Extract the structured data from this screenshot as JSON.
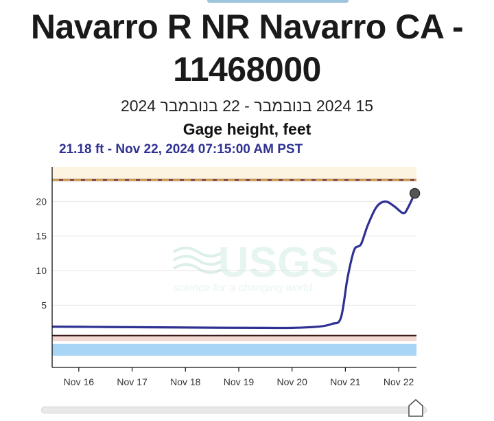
{
  "header": {
    "title": "Navarro R NR Navarro CA - 11468000",
    "date_range": "15 2024 בנובמבר - 22 בנובמבר 2024",
    "parameter": "Gage height, feet",
    "latest_reading": "21.18 ft - Nov 22, 2024 07:15:00 AM PST"
  },
  "watermark": {
    "logo_text": "USGS",
    "tagline": "science for a changing world"
  },
  "colors": {
    "series": "#2e3192",
    "flood_band": "#fdf3e1",
    "flood_line": "#7b3a36",
    "flood_dash": "#f2c94c",
    "low_band": "#f2d8d2",
    "low_line": "#3b1a1a",
    "no_flow_band": "#a8d4f5",
    "grid": "#e6e6e6"
  },
  "slider": {
    "value": 1.0
  },
  "chart_data": {
    "type": "line",
    "xlabel": "",
    "ylabel": "",
    "x_domain": [
      "2024-11-15T12:00",
      "2024-11-22T08:00"
    ],
    "y_domain": [
      -4,
      25
    ],
    "y_ticks": [
      5,
      10,
      15,
      20
    ],
    "x_ticks": [
      {
        "t": "2024-11-16T00:00",
        "label": "Nov 16"
      },
      {
        "t": "2024-11-17T00:00",
        "label": "Nov 17"
      },
      {
        "t": "2024-11-18T00:00",
        "label": "Nov 18"
      },
      {
        "t": "2024-11-19T00:00",
        "label": "Nov 19"
      },
      {
        "t": "2024-11-20T00:00",
        "label": "Nov 20"
      },
      {
        "t": "2024-11-21T00:00",
        "label": "Nov 21"
      },
      {
        "t": "2024-11-22T00:00",
        "label": "Nov 22"
      }
    ],
    "grid": true,
    "reference_bands": [
      {
        "kind": "flood",
        "from": 23.1,
        "to": 25,
        "line": 23.1
      },
      {
        "kind": "low",
        "from": -0.2,
        "to": 0.6,
        "line": 0.6
      },
      {
        "kind": "no-flow",
        "from": -2.3,
        "to": -0.6
      }
    ],
    "series": [
      {
        "name": "",
        "points": [
          [
            "2024-11-15T12:00",
            1.9
          ],
          [
            "2024-11-16T12:00",
            1.85
          ],
          [
            "2024-11-17T12:00",
            1.8
          ],
          [
            "2024-11-18T12:00",
            1.75
          ],
          [
            "2024-11-19T12:00",
            1.72
          ],
          [
            "2024-11-20T00:00",
            1.72
          ],
          [
            "2024-11-20T12:00",
            1.9
          ],
          [
            "2024-11-20T18:00",
            2.3
          ],
          [
            "2024-11-20T22:00",
            3.2
          ],
          [
            "2024-11-21T01:00",
            9.0
          ],
          [
            "2024-11-21T04:00",
            13.0
          ],
          [
            "2024-11-21T07:00",
            13.8
          ],
          [
            "2024-11-21T10:00",
            16.5
          ],
          [
            "2024-11-21T14:00",
            19.2
          ],
          [
            "2024-11-21T18:00",
            20.0
          ],
          [
            "2024-11-21T22:00",
            19.3
          ],
          [
            "2024-11-22T02:00",
            18.3
          ],
          [
            "2024-11-22T04:00",
            19.0
          ],
          [
            "2024-11-22T07:15",
            21.18
          ]
        ]
      }
    ],
    "last_point": {
      "t": "2024-11-22T07:15",
      "v": 21.18
    }
  }
}
